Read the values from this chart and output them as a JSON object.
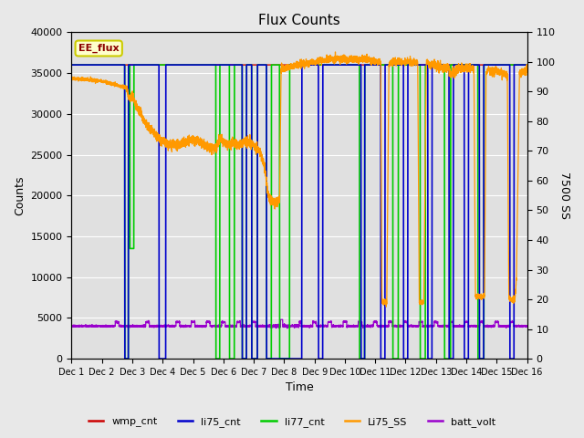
{
  "title": "Flux Counts",
  "xlabel": "Time",
  "ylabel_left": "Counts",
  "ylabel_right": "7500 SS",
  "ylim_left": [
    0,
    40000
  ],
  "ylim_right": [
    0,
    110
  ],
  "xlim": [
    0,
    15
  ],
  "xtick_positions": [
    0,
    1,
    2,
    3,
    4,
    5,
    6,
    7,
    8,
    9,
    10,
    11,
    12,
    13,
    14,
    15
  ],
  "xtick_labels": [
    "Dec 1",
    "Dec 2",
    "Dec 3",
    "Dec 4",
    "Dec 5",
    "Dec 6",
    "Dec 7",
    "Dec 8",
    "Dec 9",
    "Dec 10",
    "Dec 11",
    "Dec 12",
    "Dec 13",
    "Dec 14",
    "Dec 15",
    "Dec 16"
  ],
  "yticks_left": [
    0,
    5000,
    10000,
    15000,
    20000,
    25000,
    30000,
    35000,
    40000
  ],
  "yticks_right": [
    0,
    10,
    20,
    30,
    40,
    50,
    60,
    70,
    80,
    90,
    100,
    110
  ],
  "fig_bg_color": "#e8e8e8",
  "plot_bg_color": "#e0e0e0",
  "annotation_text": "EE_flux",
  "annotation_fg": "#8B0000",
  "annotation_bg": "#ffffcc",
  "annotation_border": "#cccc00",
  "colors": {
    "wmp_cnt": "#cc0000",
    "li75_cnt": "#0000cc",
    "li77_cnt": "#00cc00",
    "Li75_SS": "#ff9900",
    "batt_volt": "#9900cc"
  },
  "wmp_cnt_level": 36000,
  "li77_cnt_level": 36000,
  "li75_cnt_level": 36000,
  "batt_volt_level": 4000
}
